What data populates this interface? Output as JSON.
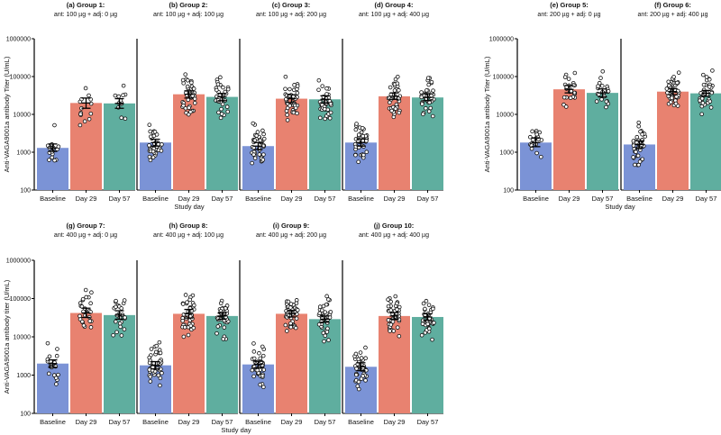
{
  "chart_data": {
    "type": "bar",
    "scale": "log",
    "ylim": [
      100,
      1000000
    ],
    "yticks": [
      100,
      1000,
      10000,
      100000,
      1000000
    ],
    "ytick_labels": [
      "100",
      "1000",
      "10000",
      "100000",
      "1000000"
    ],
    "categories": [
      "Baseline",
      "Day 29",
      "Day 57"
    ],
    "category_colors": [
      "#7b93d6",
      "#e88270",
      "#5fae9f"
    ],
    "xlabel": "Study day",
    "rows": [
      {
        "ylabel": "Anti-VAGA9001a antibody Titer (U/mL)",
        "panels": [
          {
            "title": "(a) Group 1:",
            "subtitle": "ant: 100 µg + adj: 0 µg",
            "values": [
              1300,
              20000,
              19500
            ],
            "errors": [
              [
                1050,
                1650
              ],
              [
                14500,
                27000
              ],
              [
                14500,
                26000
              ]
            ],
            "counts": [
              18,
              14,
              12
            ]
          },
          {
            "title": "(b) Group 2:",
            "subtitle": "ant: 100 µg + adj: 100 µg",
            "values": [
              1800,
              34000,
              29000
            ],
            "errors": [
              [
                1450,
                2200
              ],
              [
                27000,
                42000
              ],
              [
                23000,
                36000
              ]
            ],
            "counts": [
              38,
              38,
              36
            ]
          },
          {
            "title": "(c) Group 3:",
            "subtitle": "ant: 100 µg + adj: 200 µg",
            "values": [
              1450,
              26000,
              25000
            ],
            "errors": [
              [
                1180,
                1800
              ],
              [
                20500,
                33000
              ],
              [
                20000,
                31000
              ]
            ],
            "counts": [
              40,
              42,
              40
            ]
          },
          {
            "title": "(d) Group 4:",
            "subtitle": "ant: 100 µg + adj: 400 µg",
            "values": [
              1800,
              30000,
              28000
            ],
            "errors": [
              [
                1450,
                2250
              ],
              [
                25000,
                37000
              ],
              [
                23000,
                35000
              ]
            ],
            "counts": [
              42,
              42,
              40
            ]
          }
        ]
      },
      {
        "ylabel": "Anti-VAGA9001a antibody Titer (U/mL)",
        "panels": [
          {
            "title": "(e) Group 5:",
            "subtitle": "ant: 200 µg + adj: 0 µg",
            "values": [
              1800,
              46000,
              37000
            ],
            "errors": [
              [
                1400,
                2400
              ],
              [
                37000,
                58000
              ],
              [
                29000,
                47000
              ]
            ],
            "counts": [
              20,
              24,
              22
            ]
          },
          {
            "title": "(f) Group 6:",
            "subtitle": "ant: 200 µg + adj: 400 µg",
            "values": [
              1600,
              40000,
              36000
            ],
            "errors": [
              [
                1300,
                2000
              ],
              [
                33000,
                48000
              ],
              [
                30000,
                43000
              ]
            ],
            "counts": [
              42,
              44,
              42
            ]
          }
        ]
      },
      {
        "ylabel": "Anti-VAGA9001a antibody titer (U/mL)",
        "panels": [
          {
            "title": "(g) Group 7:",
            "subtitle": "ant: 400 µg + adj: 0 µg",
            "values": [
              2000,
              42000,
              37000
            ],
            "errors": [
              [
                1600,
                2500
              ],
              [
                32000,
                56000
              ],
              [
                29000,
                48000
              ]
            ],
            "counts": [
              20,
              26,
              24
            ]
          },
          {
            "title": "(h) Group 8:",
            "subtitle": "ant: 400 µg + adj: 100 µg",
            "values": [
              1800,
              40000,
              35000
            ],
            "errors": [
              [
                1450,
                2250
              ],
              [
                31000,
                52000
              ],
              [
                29000,
                42000
              ]
            ],
            "counts": [
              42,
              42,
              40
            ]
          },
          {
            "title": "(i) Group 9:",
            "subtitle": "ant: 400 µg + adj: 200 µg",
            "values": [
              1900,
              40000,
              29000
            ],
            "errors": [
              [
                1550,
                2300
              ],
              [
                33000,
                49000
              ],
              [
                24000,
                35000
              ]
            ],
            "counts": [
              42,
              44,
              40
            ]
          },
          {
            "title": "(j) Group 10:",
            "subtitle": "ant: 400 µg + adj: 400 µg",
            "values": [
              1650,
              35000,
              33000
            ],
            "errors": [
              [
                1300,
                2100
              ],
              [
                29000,
                43000
              ],
              [
                27000,
                40000
              ]
            ],
            "counts": [
              42,
              42,
              40
            ]
          }
        ]
      }
    ]
  }
}
